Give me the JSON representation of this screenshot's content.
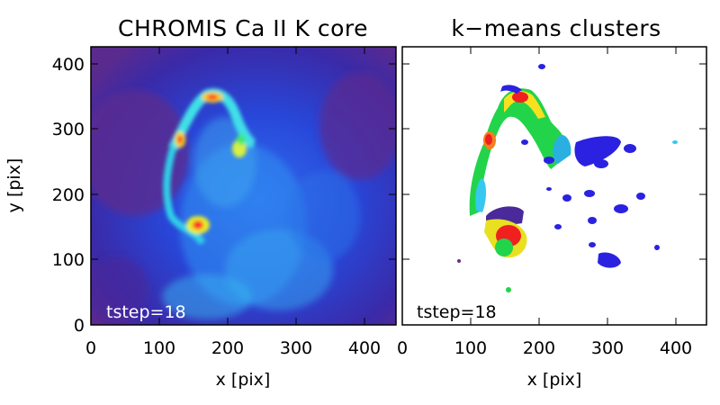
{
  "figure": {
    "panels": [
      {
        "title": "CHROMIS Ca II K core",
        "tstep_label": "tstep=18",
        "xlabel": "x [pix]",
        "ylabel": "y [pix]",
        "x_ticks": [
          "0",
          "100",
          "200",
          "300",
          "400"
        ],
        "y_ticks": [
          "0",
          "100",
          "200",
          "300",
          "400"
        ],
        "x_range": [
          0,
          445
        ],
        "y_range": [
          0,
          415
        ],
        "colors": {
          "background": "#6b2a86",
          "low": "#1a2fd6",
          "mid": "#36c8f0",
          "high": "#ff1e1e"
        }
      },
      {
        "title": "k−means clusters",
        "tstep_label": "tstep=18",
        "xlabel": "x [pix]",
        "x_ticks": [
          "0",
          "100",
          "200",
          "300",
          "400"
        ],
        "x_range": [
          0,
          445
        ],
        "y_range": [
          0,
          415
        ],
        "colors": {
          "background": "#ffffff",
          "cluster_low": "#2a22e0",
          "cluster_mid": "#22d44a",
          "cluster_high": "#f02020"
        }
      }
    ]
  }
}
